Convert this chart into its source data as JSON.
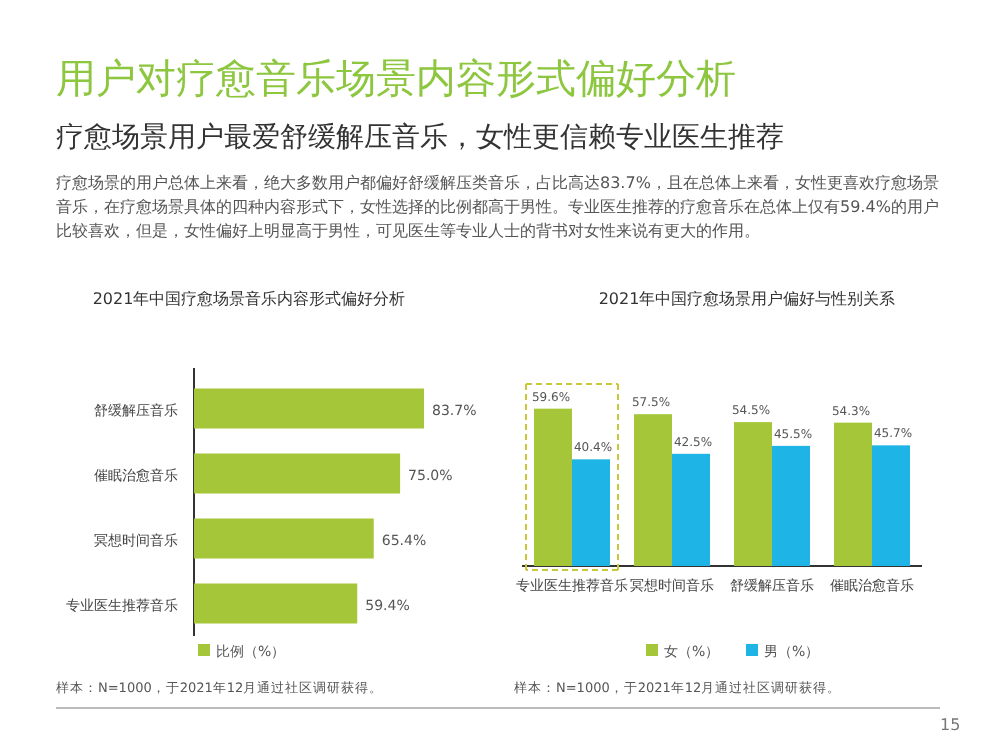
{
  "chart_data": [
    {
      "type": "other",
      "title": "用户对疗愈音乐场景内容形式偏好分析",
      "subtitle": "疗愈场景用户最爱舒缓解压音乐，女性更信赖专业医生推荐",
      "annotations": [
        "疗愈场景的用户总体上来看，绝大多数用户都偏好舒缓解压类音乐，占比高达83.7%，且在总体上来看，女性更喜欢疗愈场景音乐，在疗愈场景具体的四种内容形式下，女性选择的比例都高于男性。专业医生推荐的疗愈音乐在总体上仅有59.4%的用户比较喜欢，但是，女性偏好上明显高于男性，可见医生等专业人士的背书对女性来说有更大的作用。",
        "15"
      ]
    },
    {
      "type": "bar",
      "orientation": "horizontal",
      "title": "2021年中国疗愈场景音乐内容形式偏好分析",
      "categories": [
        "舒缓解压音乐",
        "催眠治愈音乐",
        "冥想时间音乐",
        "专业医生推荐音乐"
      ],
      "series": [
        {
          "name": "比例（%）",
          "color": "#a5c638",
          "values": [
            83.7,
            75.0,
            65.4,
            59.4
          ],
          "value_labels": [
            "83.7%",
            "75.0%",
            "65.4%",
            "59.4%"
          ]
        }
      ],
      "legend": "bottom",
      "annotations": [
        "样本：N=1000，于2021年12月通过社区调研获得。"
      ]
    },
    {
      "type": "bar",
      "title": "2021年中国疗愈场景用户偏好与性别关系",
      "categories": [
        "专业医生推荐音乐",
        "冥想时间音乐",
        "舒缓解压音乐",
        "催眠治愈音乐"
      ],
      "series": [
        {
          "name": "女（%）",
          "color": "#a5c638",
          "values": [
            59.6,
            57.5,
            54.5,
            54.3
          ],
          "value_labels": [
            "59.6%",
            "57.5%",
            "54.5%",
            "54.3%"
          ]
        },
        {
          "name": "男（%）",
          "color": "#1eb4e6",
          "values": [
            40.4,
            42.5,
            45.5,
            45.7
          ],
          "value_labels": [
            "40.4%",
            "42.5%",
            "45.5%",
            "45.7%"
          ]
        }
      ],
      "legend": "bottom",
      "annotations": [
        "样本：N=1000，于2021年12月通过社区调研获得。"
      ]
    }
  ]
}
